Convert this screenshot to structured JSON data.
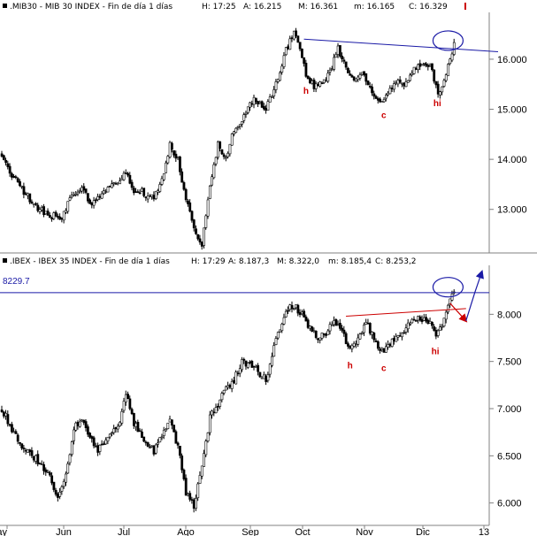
{
  "chart_data": [
    {
      "type": "candlestick",
      "header": {
        "name": ".MIB30 - MIB 30 INDEX - Fin de día 1 días",
        "high": "H: 17:25",
        "a": "A: 16.215",
        "m": "M: 16.361",
        "mn": "m: 16.165",
        "c": "C: 16.329"
      },
      "y_ticks": [
        "16.000",
        "15.000",
        "14.000",
        "13.000"
      ],
      "y_tick_values": [
        16000,
        15000,
        14000,
        13000
      ],
      "ylim": [
        12200,
        16900
      ],
      "x_ticks": [
        "Jun",
        "Jul",
        "Ago",
        "Sep",
        "Oct",
        "Nov",
        "Dic"
      ],
      "waypoints": [
        [
          0,
          14100
        ],
        [
          5,
          13700
        ],
        [
          12,
          13300
        ],
        [
          18,
          13000
        ],
        [
          24,
          12900
        ],
        [
          30,
          12800
        ],
        [
          35,
          13300
        ],
        [
          40,
          13400
        ],
        [
          45,
          13100
        ],
        [
          50,
          13300
        ],
        [
          56,
          13500
        ],
        [
          62,
          13700
        ],
        [
          66,
          13400
        ],
        [
          70,
          13350
        ],
        [
          76,
          13200
        ],
        [
          80,
          13600
        ],
        [
          84,
          14300
        ],
        [
          88,
          14000
        ],
        [
          92,
          13200
        ],
        [
          96,
          12600
        ],
        [
          100,
          12300
        ],
        [
          104,
          13400
        ],
        [
          108,
          14300
        ],
        [
          112,
          14000
        ],
        [
          116,
          14600
        ],
        [
          120,
          14800
        ],
        [
          126,
          15200
        ],
        [
          132,
          15000
        ],
        [
          138,
          15600
        ],
        [
          142,
          16200
        ],
        [
          146,
          16500
        ],
        [
          149,
          16200
        ],
        [
          152,
          15700
        ],
        [
          156,
          15450
        ],
        [
          160,
          15500
        ],
        [
          164,
          15750
        ],
        [
          168,
          16200
        ],
        [
          172,
          15800
        ],
        [
          176,
          15550
        ],
        [
          180,
          15700
        ],
        [
          186,
          15300
        ],
        [
          190,
          15150
        ],
        [
          194,
          15400
        ],
        [
          198,
          15600
        ],
        [
          202,
          15500
        ],
        [
          206,
          15800
        ],
        [
          210,
          15900
        ],
        [
          214,
          15900
        ],
        [
          218,
          15300
        ],
        [
          222,
          15700
        ],
        [
          226,
          16300
        ]
      ],
      "patterns": [
        {
          "label": "h",
          "at": 152
        },
        {
          "label": "c",
          "at": 191
        },
        {
          "label": "hi",
          "at": 217
        }
      ],
      "trendline": [
        [
          151,
          16400
        ],
        [
          248,
          16150
        ]
      ]
    },
    {
      "type": "candlestick",
      "header": {
        "name": ".IBEX - IBEX 35 INDEX - Fin de día 1 días",
        "high": "H: 17:29",
        "a": "A: 8.187,3",
        "m": "M: 8.322,0",
        "mn": "m: 8.185,4",
        "c": "C: 8.253,2"
      },
      "level_label": "8229.7",
      "level_value": 8229.7,
      "y_ticks": [
        "8.000",
        "7.500",
        "7.000",
        "6.500",
        "6.000"
      ],
      "y_tick_values": [
        8000,
        7500,
        7000,
        6500,
        6000
      ],
      "ylim": [
        5800,
        8500
      ],
      "x_ticks": [
        "ay",
        "Jun",
        "Jul",
        "Ago",
        "Sep",
        "Oct",
        "Nov",
        "Dic",
        "13"
      ],
      "waypoints": [
        [
          0,
          7000
        ],
        [
          6,
          6750
        ],
        [
          12,
          6550
        ],
        [
          18,
          6450
        ],
        [
          24,
          6300
        ],
        [
          28,
          6050
        ],
        [
          32,
          6300
        ],
        [
          36,
          6800
        ],
        [
          40,
          6900
        ],
        [
          44,
          6700
        ],
        [
          48,
          6550
        ],
        [
          52,
          6650
        ],
        [
          58,
          6800
        ],
        [
          62,
          7150
        ],
        [
          66,
          6850
        ],
        [
          70,
          6700
        ],
        [
          76,
          6550
        ],
        [
          80,
          6700
        ],
        [
          84,
          6850
        ],
        [
          88,
          6600
        ],
        [
          92,
          6100
        ],
        [
          96,
          5980
        ],
        [
          100,
          6400
        ],
        [
          104,
          6900
        ],
        [
          108,
          7050
        ],
        [
          112,
          7200
        ],
        [
          116,
          7300
        ],
        [
          120,
          7500
        ],
        [
          126,
          7450
        ],
        [
          132,
          7300
        ],
        [
          138,
          7800
        ],
        [
          142,
          8050
        ],
        [
          146,
          8100
        ],
        [
          150,
          8000
        ],
        [
          154,
          7850
        ],
        [
          158,
          7750
        ],
        [
          162,
          7800
        ],
        [
          166,
          7950
        ],
        [
          170,
          7800
        ],
        [
          174,
          7650
        ],
        [
          178,
          7750
        ],
        [
          182,
          7900
        ],
        [
          186,
          7750
        ],
        [
          190,
          7600
        ],
        [
          194,
          7700
        ],
        [
          198,
          7750
        ],
        [
          202,
          7850
        ],
        [
          206,
          7950
        ],
        [
          210,
          7950
        ],
        [
          214,
          7900
        ],
        [
          217,
          7750
        ],
        [
          220,
          7900
        ],
        [
          226,
          8250
        ]
      ],
      "patterns": [
        {
          "label": "h",
          "at": 174
        },
        {
          "label": "c",
          "at": 191
        },
        {
          "label": "hi",
          "at": 216
        }
      ],
      "trendline": [
        [
          172,
          7980
        ],
        [
          232,
          8060
        ]
      ]
    }
  ]
}
